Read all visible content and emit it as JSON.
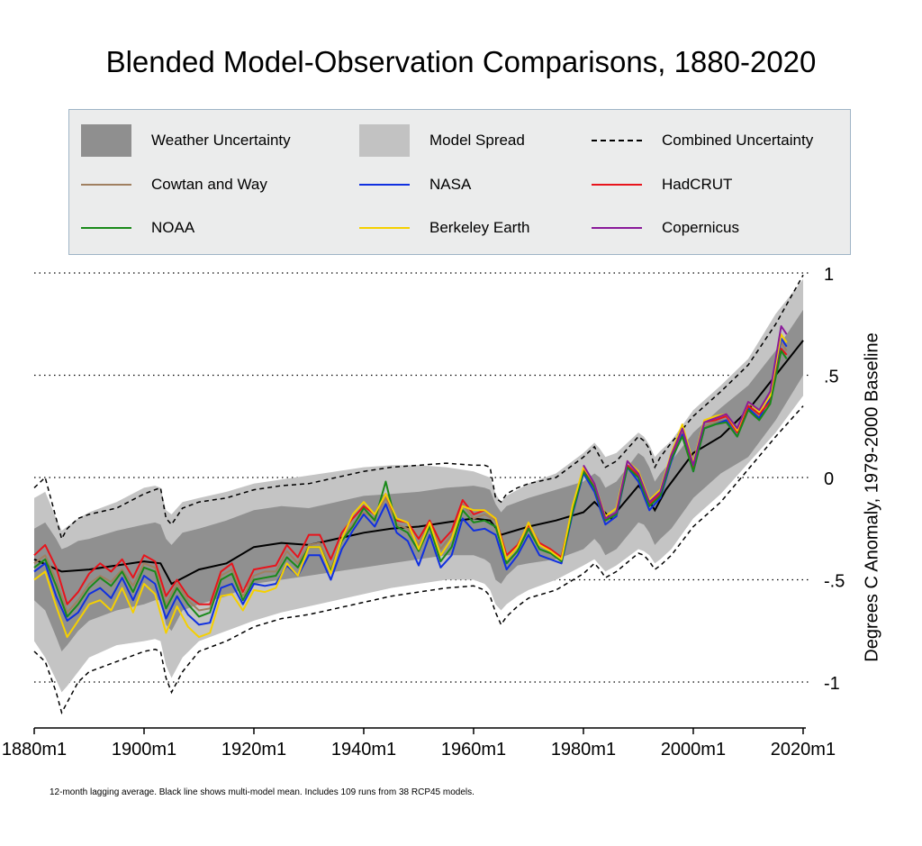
{
  "chart_data": {
    "type": "line",
    "title": "Blended Model-Observation Comparisons, 1880-2020",
    "ylabel": "Degrees C Anomaly, 1979-2000 Baseline",
    "xlabel": "",
    "footnote": "12-month lagging average. Black line shows multi-model mean. Includes 109 runs from 38 RCP45 models.",
    "xlim": [
      1880,
      2020.5
    ],
    "ylim": [
      -1.2,
      1.05
    ],
    "x_ticks": [
      {
        "value": 1880,
        "label": "1880m1"
      },
      {
        "value": 1900,
        "label": "1900m1"
      },
      {
        "value": 1920,
        "label": "1920m1"
      },
      {
        "value": 1940,
        "label": "1940m1"
      },
      {
        "value": 1960,
        "label": "1960m1"
      },
      {
        "value": 1980,
        "label": "1980m1"
      },
      {
        "value": 2000,
        "label": "2000m1"
      },
      {
        "value": 2020,
        "label": "2020m1"
      }
    ],
    "y_ticks": [
      {
        "value": 1,
        "label": "1"
      },
      {
        "value": 0.5,
        "label": ".5"
      },
      {
        "value": 0,
        "label": "0"
      },
      {
        "value": -0.5,
        "label": "-.5"
      },
      {
        "value": -1,
        "label": "-1"
      }
    ],
    "grid": "dotted horizontal lines at y ticks",
    "legend": {
      "placement": "top",
      "entries": [
        {
          "key": "weather",
          "label": "Weather Uncertainty",
          "kind": "patch",
          "color": "#8f8f8f"
        },
        {
          "key": "model",
          "label": "Model Spread",
          "kind": "patch",
          "color": "#c2c2c2"
        },
        {
          "key": "combined",
          "label": "Combined Uncertainty",
          "kind": "dash",
          "color": "#000000"
        },
        {
          "key": "cowtan",
          "label": "Cowtan and Way",
          "kind": "line",
          "color": "#a08060"
        },
        {
          "key": "nasa",
          "label": "NASA",
          "kind": "line",
          "color": "#1030e0"
        },
        {
          "key": "hadcrut",
          "label": "HadCRUT",
          "kind": "line",
          "color": "#e8141c"
        },
        {
          "key": "noaa",
          "label": "NOAA",
          "kind": "line",
          "color": "#1a8a1a"
        },
        {
          "key": "berkeley",
          "label": "Berkeley Earth",
          "kind": "line",
          "color": "#f5d000"
        },
        {
          "key": "copernicus",
          "label": "Copernicus",
          "kind": "line",
          "color": "#8a1a9a"
        }
      ]
    },
    "model_mean": {
      "name": "Multi-model mean",
      "x": [
        1880,
        1885,
        1890,
        1895,
        1900,
        1903,
        1905,
        1910,
        1915,
        1920,
        1925,
        1930,
        1935,
        1940,
        1945,
        1950,
        1955,
        1960,
        1963,
        1965,
        1970,
        1975,
        1980,
        1982,
        1985,
        1990,
        1991,
        1993,
        1995,
        2000,
        2005,
        2010,
        2015,
        2020
      ],
      "y": [
        -0.4,
        -0.46,
        -0.45,
        -0.43,
        -0.41,
        -0.42,
        -0.52,
        -0.45,
        -0.42,
        -0.34,
        -0.32,
        -0.33,
        -0.3,
        -0.27,
        -0.25,
        -0.24,
        -0.22,
        -0.2,
        -0.21,
        -0.28,
        -0.24,
        -0.21,
        -0.17,
        -0.12,
        -0.2,
        -0.04,
        -0.07,
        -0.16,
        -0.06,
        0.12,
        0.2,
        0.33,
        0.5,
        0.67
      ]
    },
    "bands": {
      "x": [
        1880,
        1882,
        1884,
        1885,
        1886,
        1888,
        1890,
        1895,
        1900,
        1902,
        1903,
        1904,
        1905,
        1907,
        1910,
        1915,
        1920,
        1925,
        1930,
        1935,
        1940,
        1945,
        1950,
        1955,
        1960,
        1962,
        1963,
        1964,
        1965,
        1966,
        1968,
        1970,
        1975,
        1980,
        1982,
        1983,
        1984,
        1986,
        1990,
        1991,
        1992,
        1993,
        1994,
        1996,
        2000,
        2005,
        2010,
        2015,
        2020
      ],
      "combined_upper": [
        -0.05,
        0.0,
        -0.2,
        -0.3,
        -0.25,
        -0.2,
        -0.18,
        -0.15,
        -0.08,
        -0.06,
        -0.05,
        -0.2,
        -0.23,
        -0.15,
        -0.12,
        -0.1,
        -0.06,
        -0.04,
        -0.03,
        0.0,
        0.03,
        0.05,
        0.06,
        0.07,
        0.06,
        0.06,
        0.05,
        -0.1,
        -0.12,
        -0.08,
        -0.05,
        -0.03,
        0.0,
        0.1,
        0.15,
        0.1,
        0.05,
        0.08,
        0.2,
        0.18,
        0.14,
        0.05,
        0.1,
        0.17,
        0.3,
        0.42,
        0.55,
        0.75,
        0.99
      ],
      "model_upper": [
        -0.1,
        -0.07,
        -0.2,
        -0.26,
        -0.24,
        -0.2,
        -0.17,
        -0.12,
        -0.05,
        -0.04,
        -0.05,
        -0.16,
        -0.18,
        -0.12,
        -0.1,
        -0.07,
        -0.03,
        -0.01,
        0.01,
        0.03,
        0.05,
        0.06,
        0.06,
        0.05,
        0.03,
        0.01,
        0.0,
        -0.08,
        -0.12,
        -0.09,
        -0.06,
        -0.03,
        0.02,
        0.12,
        0.17,
        0.14,
        0.1,
        0.12,
        0.22,
        0.2,
        0.16,
        0.1,
        0.13,
        0.18,
        0.33,
        0.45,
        0.58,
        0.8,
        0.97
      ],
      "weather_upper": [
        -0.25,
        -0.22,
        -0.3,
        -0.35,
        -0.34,
        -0.31,
        -0.3,
        -0.26,
        -0.23,
        -0.22,
        -0.23,
        -0.3,
        -0.33,
        -0.27,
        -0.25,
        -0.21,
        -0.16,
        -0.14,
        -0.15,
        -0.12,
        -0.09,
        -0.08,
        -0.07,
        -0.05,
        -0.04,
        -0.05,
        -0.06,
        -0.13,
        -0.17,
        -0.14,
        -0.12,
        -0.1,
        -0.06,
        -0.02,
        0.02,
        0.0,
        -0.05,
        -0.02,
        0.12,
        0.1,
        0.05,
        -0.02,
        0.02,
        0.08,
        0.22,
        0.34,
        0.45,
        0.62,
        0.82
      ],
      "weather_lower": [
        -0.6,
        -0.65,
        -0.78,
        -0.85,
        -0.82,
        -0.75,
        -0.7,
        -0.65,
        -0.62,
        -0.6,
        -0.6,
        -0.72,
        -0.75,
        -0.65,
        -0.62,
        -0.58,
        -0.52,
        -0.5,
        -0.48,
        -0.46,
        -0.44,
        -0.42,
        -0.4,
        -0.38,
        -0.38,
        -0.4,
        -0.42,
        -0.5,
        -0.52,
        -0.48,
        -0.43,
        -0.42,
        -0.4,
        -0.35,
        -0.3,
        -0.33,
        -0.38,
        -0.35,
        -0.22,
        -0.23,
        -0.27,
        -0.33,
        -0.3,
        -0.25,
        -0.1,
        0.02,
        0.1,
        0.28,
        0.5
      ],
      "model_lower": [
        -0.8,
        -0.88,
        -0.99,
        -1.05,
        -1.02,
        -0.95,
        -0.88,
        -0.82,
        -0.8,
        -0.79,
        -0.8,
        -0.92,
        -0.98,
        -0.88,
        -0.8,
        -0.75,
        -0.7,
        -0.66,
        -0.63,
        -0.6,
        -0.57,
        -0.54,
        -0.52,
        -0.5,
        -0.5,
        -0.52,
        -0.55,
        -0.62,
        -0.65,
        -0.62,
        -0.58,
        -0.55,
        -0.5,
        -0.43,
        -0.4,
        -0.43,
        -0.46,
        -0.43,
        -0.35,
        -0.36,
        -0.38,
        -0.42,
        -0.4,
        -0.35,
        -0.2,
        -0.08,
        0.07,
        0.22,
        0.4
      ],
      "combined_lower": [
        -0.85,
        -0.9,
        -1.05,
        -1.15,
        -1.1,
        -1.0,
        -0.95,
        -0.9,
        -0.85,
        -0.84,
        -0.85,
        -0.98,
        -1.05,
        -0.95,
        -0.85,
        -0.8,
        -0.73,
        -0.69,
        -0.67,
        -0.64,
        -0.61,
        -0.58,
        -0.56,
        -0.54,
        -0.53,
        -0.55,
        -0.58,
        -0.66,
        -0.72,
        -0.68,
        -0.63,
        -0.59,
        -0.55,
        -0.47,
        -0.42,
        -0.45,
        -0.49,
        -0.46,
        -0.37,
        -0.38,
        -0.41,
        -0.45,
        -0.43,
        -0.38,
        -0.24,
        -0.12,
        0.04,
        0.2,
        0.35
      ]
    },
    "observations": {
      "x": [
        1880,
        1882,
        1884,
        1886,
        1888,
        1890,
        1892,
        1894,
        1896,
        1898,
        1900,
        1902,
        1904,
        1906,
        1908,
        1910,
        1912,
        1914,
        1916,
        1918,
        1920,
        1922,
        1924,
        1926,
        1928,
        1930,
        1932,
        1934,
        1936,
        1938,
        1940,
        1942,
        1944,
        1946,
        1948,
        1950,
        1952,
        1954,
        1956,
        1958,
        1960,
        1962,
        1964,
        1966,
        1968,
        1970,
        1972,
        1974,
        1976,
        1978,
        1980,
        1982,
        1984,
        1986,
        1988,
        1990,
        1992,
        1994,
        1996,
        1998,
        2000,
        2002,
        2004,
        2006,
        2008,
        2010,
        2012,
        2014,
        2016,
        2017
      ],
      "series": [
        {
          "key": "cowtan",
          "name": "Cowtan and Way",
          "color": "#a08060",
          "y": [
            -0.42,
            -0.38,
            -0.5,
            -0.66,
            -0.6,
            -0.52,
            -0.48,
            -0.51,
            -0.45,
            -0.53,
            -0.42,
            -0.44,
            -0.62,
            -0.52,
            -0.6,
            -0.65,
            -0.64,
            -0.48,
            -0.45,
            -0.58,
            -0.48,
            -0.46,
            -0.46,
            -0.36,
            -0.42,
            -0.33,
            -0.32,
            -0.45,
            -0.3,
            -0.23,
            -0.17,
            -0.2,
            -0.1,
            -0.23,
            -0.25,
            -0.33,
            -0.22,
            -0.35,
            -0.28,
            -0.13,
            -0.2,
            -0.18,
            -0.21,
            -0.4,
            -0.34,
            -0.24,
            -0.33,
            -0.35,
            -0.39,
            -0.15,
            0.04,
            -0.04,
            -0.2,
            -0.17,
            0.06,
            0.0,
            -0.13,
            -0.08,
            0.1,
            0.22,
            0.04,
            0.25,
            0.27,
            0.28,
            0.22,
            0.34,
            0.3,
            0.38,
            0.66,
            0.62
          ]
        },
        {
          "key": "nasa",
          "name": "NASA",
          "color": "#1030e0",
          "y": [
            -0.46,
            -0.42,
            -0.58,
            -0.7,
            -0.66,
            -0.57,
            -0.54,
            -0.59,
            -0.49,
            -0.6,
            -0.48,
            -0.52,
            -0.69,
            -0.58,
            -0.67,
            -0.72,
            -0.71,
            -0.54,
            -0.52,
            -0.62,
            -0.52,
            -0.53,
            -0.52,
            -0.43,
            -0.48,
            -0.38,
            -0.38,
            -0.5,
            -0.35,
            -0.26,
            -0.18,
            -0.24,
            -0.13,
            -0.27,
            -0.31,
            -0.43,
            -0.28,
            -0.44,
            -0.38,
            -0.2,
            -0.26,
            -0.25,
            -0.28,
            -0.45,
            -0.38,
            -0.28,
            -0.38,
            -0.4,
            -0.42,
            -0.18,
            0.02,
            -0.07,
            -0.23,
            -0.19,
            0.05,
            -0.02,
            -0.16,
            -0.1,
            0.08,
            0.21,
            0.03,
            0.24,
            0.26,
            0.28,
            0.2,
            0.34,
            0.29,
            0.39,
            0.68,
            0.64
          ]
        },
        {
          "key": "hadcrut",
          "name": "HadCRUT",
          "color": "#e8141c",
          "y": [
            -0.38,
            -0.33,
            -0.44,
            -0.62,
            -0.56,
            -0.47,
            -0.42,
            -0.46,
            -0.4,
            -0.49,
            -0.38,
            -0.41,
            -0.58,
            -0.5,
            -0.58,
            -0.62,
            -0.62,
            -0.46,
            -0.42,
            -0.56,
            -0.45,
            -0.44,
            -0.43,
            -0.33,
            -0.39,
            -0.28,
            -0.28,
            -0.4,
            -0.27,
            -0.2,
            -0.14,
            -0.18,
            -0.08,
            -0.21,
            -0.22,
            -0.3,
            -0.21,
            -0.32,
            -0.26,
            -0.11,
            -0.18,
            -0.16,
            -0.2,
            -0.38,
            -0.33,
            -0.23,
            -0.32,
            -0.35,
            -0.39,
            -0.15,
            0.04,
            -0.05,
            -0.21,
            -0.17,
            0.06,
            0.01,
            -0.13,
            -0.08,
            0.1,
            0.24,
            0.05,
            0.27,
            0.28,
            0.3,
            0.22,
            0.35,
            0.31,
            0.37,
            0.63,
            0.6
          ]
        },
        {
          "key": "noaa",
          "name": "NOAA",
          "color": "#1a8a1a",
          "y": [
            -0.44,
            -0.4,
            -0.53,
            -0.68,
            -0.62,
            -0.54,
            -0.49,
            -0.53,
            -0.46,
            -0.56,
            -0.44,
            -0.46,
            -0.64,
            -0.54,
            -0.62,
            -0.68,
            -0.66,
            -0.5,
            -0.47,
            -0.6,
            -0.5,
            -0.49,
            -0.48,
            -0.39,
            -0.44,
            -0.34,
            -0.34,
            -0.46,
            -0.31,
            -0.24,
            -0.15,
            -0.21,
            -0.02,
            -0.24,
            -0.27,
            -0.36,
            -0.24,
            -0.41,
            -0.34,
            -0.16,
            -0.22,
            -0.21,
            -0.24,
            -0.42,
            -0.36,
            -0.25,
            -0.35,
            -0.37,
            -0.41,
            -0.17,
            0.03,
            -0.05,
            -0.21,
            -0.18,
            0.05,
            0.0,
            -0.14,
            -0.09,
            0.09,
            0.2,
            0.03,
            0.24,
            0.26,
            0.27,
            0.2,
            0.33,
            0.28,
            0.36,
            0.62,
            0.58
          ]
        },
        {
          "key": "berkeley",
          "name": "Berkeley Earth",
          "color": "#f5d000",
          "y": [
            -0.5,
            -0.46,
            -0.63,
            -0.78,
            -0.7,
            -0.62,
            -0.6,
            -0.65,
            -0.54,
            -0.66,
            -0.52,
            -0.57,
            -0.76,
            -0.63,
            -0.73,
            -0.78,
            -0.76,
            -0.58,
            -0.57,
            -0.65,
            -0.55,
            -0.56,
            -0.54,
            -0.42,
            -0.48,
            -0.34,
            -0.34,
            -0.47,
            -0.3,
            -0.18,
            -0.12,
            -0.18,
            -0.08,
            -0.2,
            -0.22,
            -0.35,
            -0.22,
            -0.38,
            -0.3,
            -0.14,
            -0.16,
            -0.16,
            -0.2,
            -0.4,
            -0.34,
            -0.22,
            -0.33,
            -0.36,
            -0.4,
            -0.14,
            0.05,
            -0.03,
            -0.19,
            -0.15,
            0.08,
            0.03,
            -0.11,
            -0.06,
            0.12,
            0.26,
            0.07,
            0.28,
            0.3,
            0.31,
            0.23,
            0.37,
            0.32,
            0.4,
            0.7,
            0.66
          ]
        },
        {
          "key": "copernicus",
          "name": "Copernicus",
          "color": "#8a1a9a",
          "start": 1979,
          "y": [
            null,
            null,
            null,
            null,
            null,
            null,
            null,
            null,
            null,
            null,
            null,
            null,
            null,
            null,
            null,
            null,
            null,
            null,
            null,
            null,
            null,
            null,
            null,
            null,
            null,
            null,
            null,
            null,
            null,
            null,
            null,
            null,
            null,
            null,
            null,
            null,
            null,
            null,
            null,
            null,
            null,
            null,
            null,
            null,
            null,
            null,
            null,
            null,
            null,
            null,
            0.06,
            -0.03,
            -0.2,
            -0.17,
            0.08,
            0.02,
            -0.12,
            -0.07,
            0.11,
            0.24,
            0.06,
            0.27,
            0.29,
            0.31,
            0.24,
            0.37,
            0.33,
            0.42,
            0.74,
            0.7
          ]
        }
      ]
    }
  }
}
